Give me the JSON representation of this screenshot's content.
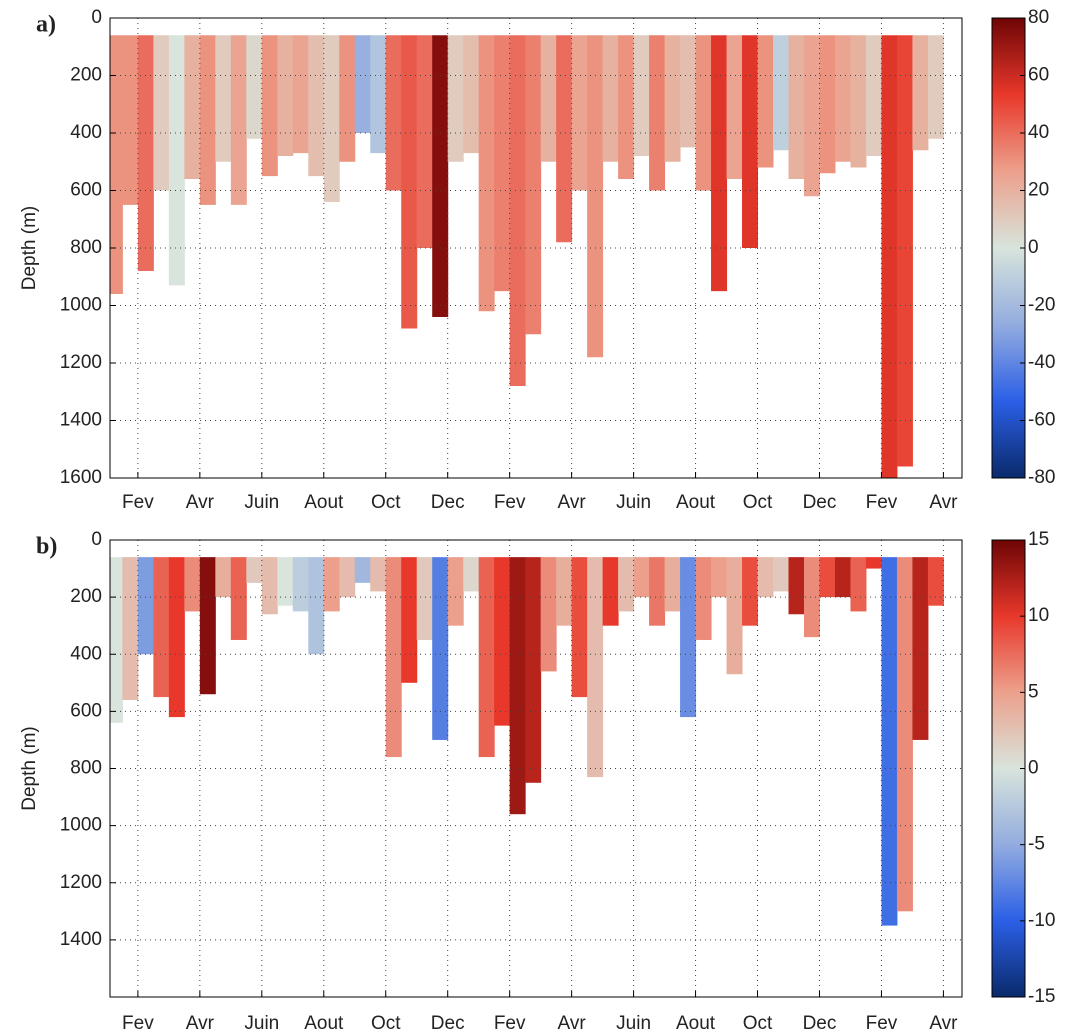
{
  "chart_data": [
    {
      "type": "heatmap",
      "panel_label": "a)",
      "ylabel": "Depth (m)",
      "x": [
        0.25,
        0.75,
        1.25,
        1.75,
        2.25,
        2.75,
        3.25,
        3.75,
        4.25,
        4.75,
        5.25,
        5.75,
        6.25,
        6.75,
        7.25,
        7.75,
        8.25,
        8.75,
        9.25,
        9.75,
        10.25,
        10.75,
        11.25,
        11.75,
        12.25,
        12.75,
        13.25,
        13.75,
        14.25,
        14.75,
        15.25,
        15.75,
        16.25,
        16.75,
        17.25,
        17.75,
        18.25,
        18.75,
        19.25,
        19.75,
        20.25,
        20.75,
        21.25,
        21.75,
        22.25,
        22.75,
        23.25,
        23.75,
        24.25,
        24.75,
        25.25,
        25.75,
        26.25,
        26.75
      ],
      "top": [
        60,
        60,
        60,
        60,
        60,
        60,
        60,
        60,
        60,
        60,
        60,
        60,
        60,
        60,
        60,
        60,
        60,
        60,
        60,
        60,
        60,
        60,
        60,
        60,
        60,
        60,
        60,
        60,
        60,
        60,
        60,
        60,
        60,
        60,
        60,
        60,
        60,
        60,
        60,
        60,
        60,
        60,
        60,
        60,
        60,
        60,
        60,
        60,
        60,
        60,
        60,
        60,
        60,
        60
      ],
      "bottom": [
        960,
        650,
        880,
        600,
        930,
        560,
        650,
        500,
        650,
        420,
        550,
        480,
        470,
        550,
        640,
        500,
        400,
        470,
        600,
        1080,
        800,
        1040,
        500,
        470,
        1020,
        950,
        1280,
        1100,
        500,
        780,
        600,
        1180,
        500,
        560,
        480,
        600,
        500,
        450,
        600,
        950,
        560,
        800,
        520,
        460,
        560,
        620,
        540,
        500,
        520,
        480,
        1600,
        1560,
        460,
        420
      ],
      "values": [
        30,
        30,
        40,
        10,
        0,
        20,
        30,
        10,
        25,
        5,
        30,
        20,
        25,
        15,
        10,
        30,
        -25,
        -15,
        40,
        45,
        40,
        75,
        10,
        15,
        30,
        35,
        40,
        35,
        20,
        40,
        25,
        30,
        20,
        30,
        10,
        35,
        20,
        15,
        30,
        55,
        25,
        55,
        30,
        -10,
        20,
        25,
        30,
        25,
        20,
        10,
        55,
        50,
        20,
        10
      ],
      "xlim": [
        0.1,
        27.6
      ],
      "xticks": [
        {
          "value": 1,
          "label": "Fev"
        },
        {
          "value": 3,
          "label": "Avr"
        },
        {
          "value": 5,
          "label": "Juin"
        },
        {
          "value": 7,
          "label": "Aout"
        },
        {
          "value": 9,
          "label": "Oct"
        },
        {
          "value": 11,
          "label": "Dec"
        },
        {
          "value": 13,
          "label": "Fev"
        },
        {
          "value": 15,
          "label": "Avr"
        },
        {
          "value": 17,
          "label": "Juin"
        },
        {
          "value": 19,
          "label": "Aout"
        },
        {
          "value": 21,
          "label": "Oct"
        },
        {
          "value": 23,
          "label": "Dec"
        },
        {
          "value": 25,
          "label": "Fev"
        },
        {
          "value": 27,
          "label": "Avr"
        }
      ],
      "ylim": [
        1600,
        0
      ],
      "yticks": [
        0,
        200,
        400,
        600,
        800,
        1000,
        1200,
        1400,
        1600
      ],
      "clim": [
        -80,
        80
      ],
      "cticks": [
        -80,
        -60,
        -40,
        -20,
        0,
        20,
        40,
        60,
        80
      ],
      "colormap": [
        "#0a2a6b",
        "#2b5fe6",
        "#93acdf",
        "#d8e4dc",
        "#eca08c",
        "#e8382b",
        "#6e0505"
      ],
      "grid": true
    },
    {
      "type": "heatmap",
      "panel_label": "b)",
      "ylabel": "Depth (m)",
      "x": [
        0.25,
        0.75,
        1.25,
        1.75,
        2.25,
        2.75,
        3.25,
        3.75,
        4.25,
        4.75,
        5.25,
        5.75,
        6.25,
        6.75,
        7.25,
        7.75,
        8.25,
        8.75,
        9.25,
        9.75,
        10.25,
        10.75,
        11.25,
        11.75,
        12.25,
        12.75,
        13.25,
        13.75,
        14.25,
        14.75,
        15.25,
        15.75,
        16.25,
        16.75,
        17.25,
        17.75,
        18.25,
        18.75,
        19.25,
        19.75,
        20.25,
        20.75,
        21.25,
        21.75,
        22.25,
        22.75,
        23.25,
        23.75,
        24.25,
        24.75,
        25.25,
        25.75,
        26.25,
        26.75
      ],
      "top": [
        60,
        60,
        60,
        60,
        60,
        60,
        60,
        60,
        60,
        60,
        60,
        60,
        60,
        60,
        60,
        60,
        60,
        60,
        60,
        60,
        60,
        60,
        60,
        60,
        60,
        60,
        60,
        60,
        60,
        60,
        60,
        60,
        60,
        60,
        60,
        60,
        60,
        60,
        60,
        60,
        60,
        60,
        60,
        60,
        60,
        60,
        60,
        60,
        60,
        60,
        60,
        60,
        60,
        60
      ],
      "bottom": [
        640,
        560,
        400,
        550,
        620,
        250,
        540,
        200,
        350,
        150,
        260,
        230,
        250,
        400,
        250,
        200,
        150,
        180,
        760,
        500,
        350,
        700,
        300,
        180,
        760,
        650,
        960,
        850,
        460,
        300,
        550,
        830,
        300,
        250,
        200,
        300,
        250,
        620,
        350,
        200,
        470,
        300,
        200,
        180,
        260,
        340,
        200,
        200,
        250,
        100,
        1350,
        1300,
        700,
        230
      ],
      "values": [
        0,
        3,
        -6,
        8,
        10,
        6,
        14,
        4,
        8,
        2,
        3,
        0,
        -2,
        -3,
        5,
        3,
        -4,
        3,
        6,
        10,
        2,
        -8,
        5,
        1,
        8,
        10,
        13,
        12,
        6,
        4,
        9,
        3,
        10,
        3,
        5,
        7,
        4,
        -7,
        6,
        5,
        4,
        9,
        3,
        2,
        12,
        6,
        9,
        12,
        8,
        10,
        -9,
        6,
        12,
        9
      ],
      "xlim": [
        0.1,
        27.6
      ],
      "xticks": [
        {
          "value": 1,
          "label": "Fev"
        },
        {
          "value": 3,
          "label": "Avr"
        },
        {
          "value": 5,
          "label": "Juin"
        },
        {
          "value": 7,
          "label": "Aout"
        },
        {
          "value": 9,
          "label": "Oct"
        },
        {
          "value": 11,
          "label": "Dec"
        },
        {
          "value": 13,
          "label": "Fev"
        },
        {
          "value": 15,
          "label": "Avr"
        },
        {
          "value": 17,
          "label": "Juin"
        },
        {
          "value": 19,
          "label": "Aout"
        },
        {
          "value": 21,
          "label": "Oct"
        },
        {
          "value": 23,
          "label": "Dec"
        },
        {
          "value": 25,
          "label": "Fev"
        },
        {
          "value": 27,
          "label": "Avr"
        }
      ],
      "ylim": [
        1600,
        0
      ],
      "yticks": [
        0,
        200,
        400,
        600,
        800,
        1000,
        1200,
        1400
      ],
      "clim": [
        -15,
        15
      ],
      "cticks": [
        -15,
        -10,
        -5,
        0,
        5,
        10,
        15
      ],
      "colormap": [
        "#0a2a6b",
        "#2b5fe6",
        "#93acdf",
        "#d8e4dc",
        "#eca08c",
        "#e8382b",
        "#6e0505"
      ],
      "grid": true
    }
  ]
}
